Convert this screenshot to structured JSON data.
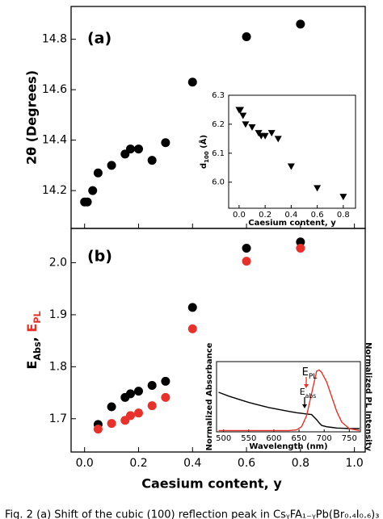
{
  "chart_data": [
    {
      "type": "scatter",
      "panel_label": "(a)",
      "ylabel": "2θ (Degrees)",
      "x": [
        0.0,
        0.01,
        0.03,
        0.05,
        0.1,
        0.15,
        0.17,
        0.2,
        0.25,
        0.3,
        0.4,
        0.6,
        0.8
      ],
      "series": [
        {
          "color": "#000000",
          "marker": "circle",
          "values": [
            14.155,
            14.155,
            14.2,
            14.27,
            14.3,
            14.345,
            14.365,
            14.365,
            14.32,
            14.39,
            14.63,
            14.81,
            14.86
          ]
        }
      ],
      "xlim": [
        -0.05,
        1.04
      ],
      "ylim": [
        14.05,
        14.93
      ],
      "yticks": [
        14.2,
        14.4,
        14.6,
        14.8
      ]
    },
    {
      "type": "scatter",
      "ylabel": [
        "d",
        "100",
        " (Å)"
      ],
      "xlabel": "Caesium content, y",
      "x": [
        0.0,
        0.01,
        0.03,
        0.05,
        0.1,
        0.15,
        0.17,
        0.2,
        0.25,
        0.3,
        0.4,
        0.6,
        0.8
      ],
      "series": [
        {
          "color": "#000000",
          "marker": "triangle-down",
          "values": [
            6.25,
            6.25,
            6.23,
            6.2,
            6.19,
            6.17,
            6.16,
            6.16,
            6.17,
            6.15,
            6.055,
            5.98,
            5.95
          ]
        }
      ],
      "xlim": [
        -0.08,
        0.894
      ],
      "ylim": [
        5.91,
        6.3
      ],
      "xticks": [
        {
          "value": 0,
          "label": "0.0"
        },
        0.2,
        0.4,
        0.6,
        0.8
      ],
      "yticks": [
        {
          "value": 6,
          "label": "6.0"
        },
        6.1,
        6.2,
        6.3
      ]
    },
    {
      "type": "scatter",
      "panel_label": "(b)",
      "ylabel": [
        "E",
        "Abs",
        ", ",
        "E",
        "PL"
      ],
      "ylabel_colors": [
        "#000000",
        "#000000",
        "#000000",
        "#e8312a",
        "#e8312a"
      ],
      "xlabel": "Caesium content, y",
      "x": [
        0.05,
        0.1,
        0.15,
        0.17,
        0.2,
        0.25,
        0.3,
        0.4,
        0.6,
        0.8
      ],
      "series": [
        {
          "color": "#000000",
          "marker": "circle",
          "values": [
            1.689,
            1.723,
            1.741,
            1.748,
            1.753,
            1.764,
            1.772,
            1.914,
            2.028,
            2.04
          ]
        },
        {
          "color": "#e8312a",
          "marker": "circle",
          "values": [
            1.68,
            1.691,
            1.697,
            1.706,
            1.711,
            1.725,
            1.741,
            1.873,
            2.003,
            2.028
          ]
        }
      ],
      "xlim": [
        -0.05,
        1.04
      ],
      "ylim": [
        1.636,
        2.066
      ],
      "xticks": [
        {
          "value": 0,
          "label": "0.0"
        },
        0.2,
        0.4,
        0.6,
        0.8,
        {
          "value": 1,
          "label": "1.0"
        }
      ],
      "yticks": [
        1.7,
        1.8,
        1.9,
        {
          "value": 2,
          "label": "2.0"
        }
      ]
    },
    {
      "type": "line",
      "ylabel": "Normalized Absorbance",
      "y2label": "Normalized PL Intensity",
      "xlabel": "Wavelength (nm)",
      "x": [
        490,
        510,
        530,
        550,
        570,
        590,
        610,
        630,
        645,
        655,
        665,
        675,
        685,
        690,
        695,
        705,
        715,
        725,
        735,
        750,
        770
      ],
      "series": [
        {
          "color": "#000000",
          "values": [
            0.62,
            0.56,
            0.51,
            0.46,
            0.42,
            0.38,
            0.35,
            0.32,
            0.3,
            0.29,
            0.28,
            0.27,
            0.19,
            0.14,
            0.1,
            0.08,
            0.07,
            0.06,
            0.055,
            0.05,
            0.05
          ]
        },
        {
          "color": "#e8312a",
          "axis": "y2",
          "values": [
            0.02,
            0.02,
            0.02,
            0.02,
            0.02,
            0.02,
            0.02,
            0.02,
            0.03,
            0.08,
            0.25,
            0.6,
            0.95,
            0.97,
            0.93,
            0.78,
            0.55,
            0.32,
            0.15,
            0.05,
            0.02
          ]
        }
      ],
      "annotations": [
        {
          "text": "E",
          "sub": "PL",
          "color": "#e8312a"
        },
        {
          "text": "E",
          "sub": "abs",
          "color": "#000000"
        }
      ],
      "xlim": [
        486,
        772
      ],
      "ylim": [
        0,
        1.1
      ],
      "y2lim": [
        0,
        1.1
      ],
      "xticks": [
        500,
        550,
        600,
        650,
        700,
        750
      ]
    }
  ],
  "caption": "Fig. 2   (a) Shift of the cubic (100) reflection peak in CsᵧFA₁₋ᵧPb(Br₀.₄I₀.₆)₃"
}
